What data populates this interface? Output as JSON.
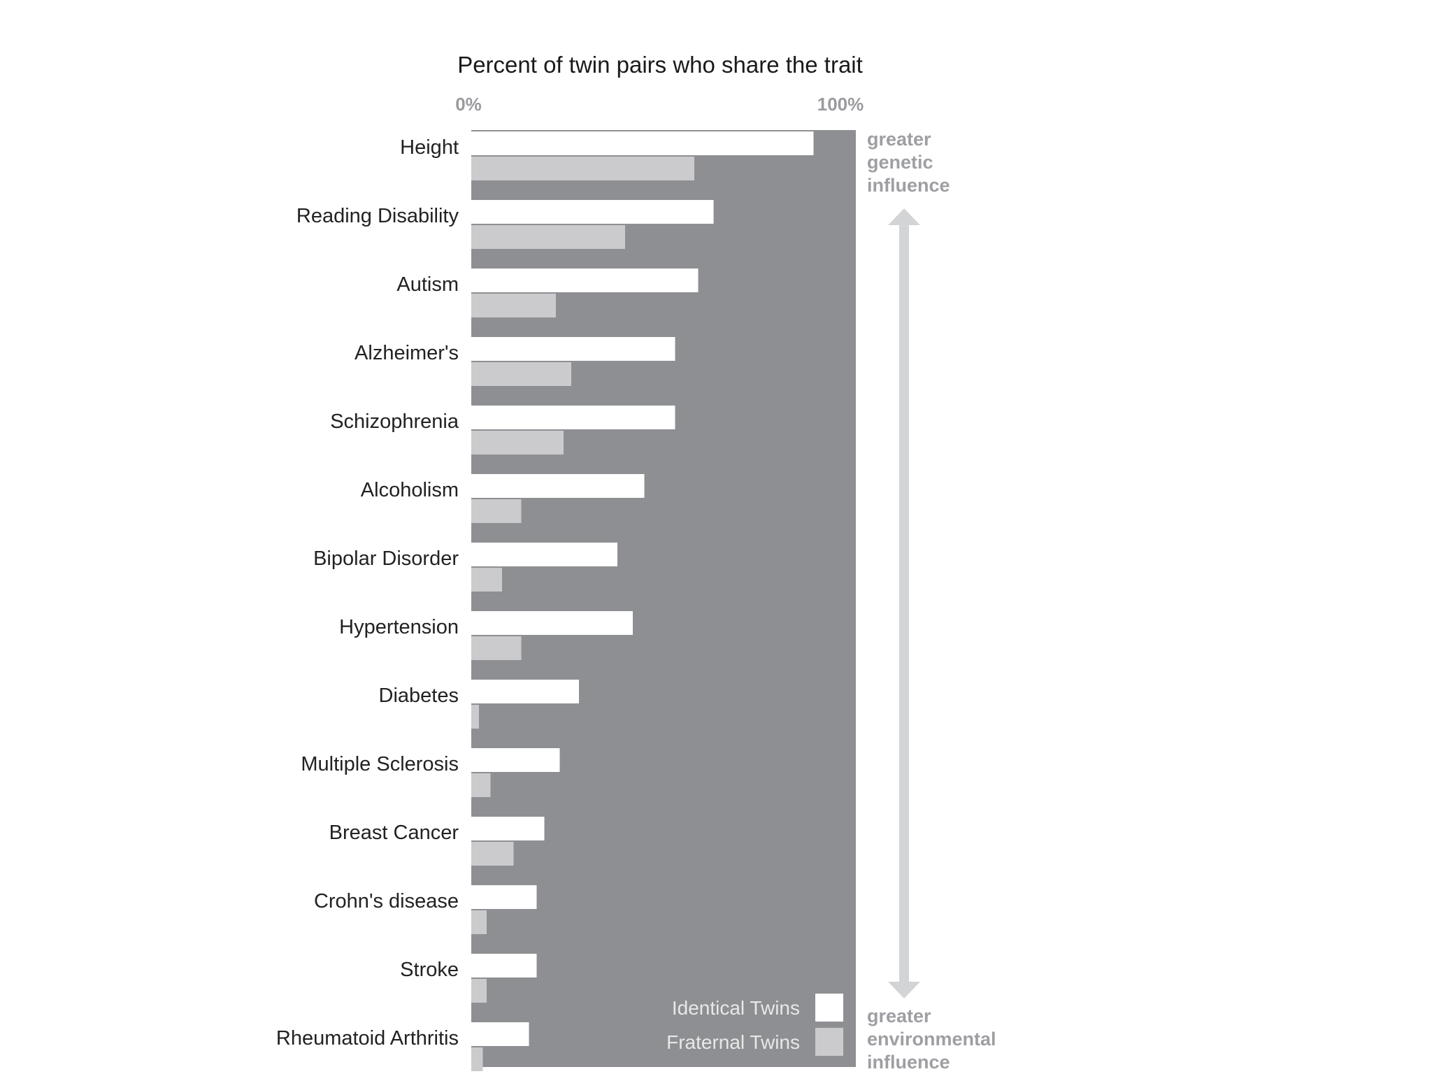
{
  "chart_data": {
    "type": "bar",
    "orientation": "horizontal",
    "title": "Percent of twin pairs who share the trait",
    "axis": {
      "min_label": "0%",
      "max_label": "100%",
      "xlim": [
        0,
        100
      ]
    },
    "categories": [
      "Height",
      "Reading Disability",
      "Autism",
      "Alzheimer's",
      "Schizophrenia",
      "Alcoholism",
      "Bipolar Disorder",
      "Hypertension",
      "Diabetes",
      "Multiple Sclerosis",
      "Breast Cancer",
      "Crohn's disease",
      "Stroke",
      "Rheumatoid Arthritis"
    ],
    "series": [
      {
        "name": "Identical Twins",
        "color": "#ffffff",
        "values": [
          89,
          63,
          59,
          53,
          53,
          45,
          38,
          42,
          28,
          23,
          19,
          17,
          17,
          15
        ]
      },
      {
        "name": "Fraternal Twins",
        "color": "#cbcbcd",
        "values": [
          58,
          40,
          22,
          26,
          24,
          13,
          8,
          13,
          2,
          5,
          11,
          4,
          4,
          3
        ]
      }
    ],
    "annotations": {
      "top": [
        "greater",
        "genetic",
        "influence"
      ],
      "bottom": [
        "greater",
        "environmental",
        "influence"
      ]
    },
    "legend_position": "bottom-right, inside plot",
    "colors": {
      "plot_background": "#8e8f92",
      "annotation_text": "#9e9fa3",
      "arrow": "#d3d4d6",
      "axis_label": "#9a9b9e",
      "category_text": "#222222",
      "title_text": "#1a1a1a"
    }
  }
}
